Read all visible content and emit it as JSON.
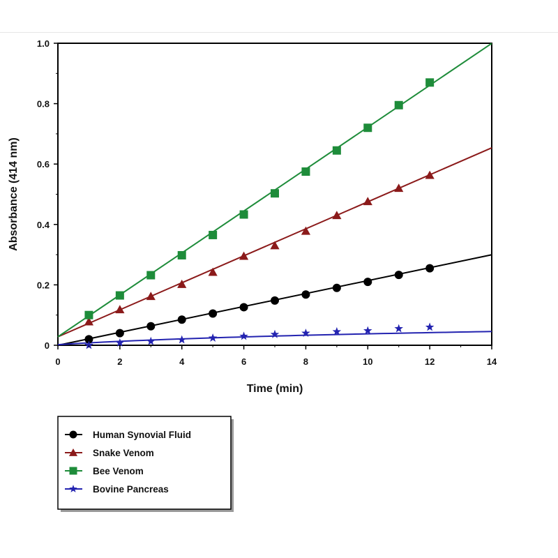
{
  "chart_data": {
    "type": "scatter",
    "xlabel": "Time (min)",
    "ylabel": "Absorbance (414 nm)",
    "xlim": [
      0,
      14
    ],
    "ylim": [
      0,
      1.0
    ],
    "x_ticks": [
      "0",
      "2",
      "4",
      "6",
      "8",
      "10",
      "12",
      "14"
    ],
    "y_ticks": [
      "0",
      "0.2",
      "0.4",
      "0.6",
      "0.8",
      "1.0"
    ],
    "grid": false,
    "legend_position": "below",
    "x": [
      1,
      2,
      3,
      4,
      5,
      6,
      7,
      8,
      9,
      10,
      11,
      12
    ],
    "series": [
      {
        "name": "Human Synovial Fluid",
        "marker": "circle",
        "color": "#000000",
        "values": [
          0.02,
          0.04,
          0.063,
          0.085,
          0.105,
          0.126,
          0.148,
          0.168,
          0.19,
          0.21,
          0.233,
          0.255
        ],
        "fit": {
          "intercept": 0.0,
          "slope": 0.0214
        }
      },
      {
        "name": "Snake Venom",
        "marker": "triangle",
        "color": "#8b1a1a",
        "values": [
          0.078,
          0.118,
          0.162,
          0.202,
          0.242,
          0.295,
          0.33,
          0.378,
          0.43,
          0.476,
          0.52,
          0.563
        ],
        "fit": {
          "intercept": 0.028,
          "slope": 0.0447
        }
      },
      {
        "name": "Bee Venom",
        "marker": "square",
        "color": "#1e8c3a",
        "values": [
          0.1,
          0.165,
          0.232,
          0.298,
          0.365,
          0.433,
          0.503,
          0.575,
          0.645,
          0.72,
          0.795,
          0.87
        ],
        "fit": {
          "intercept": 0.028,
          "slope": 0.0694
        }
      },
      {
        "name": "Bovine Pancreas",
        "marker": "star",
        "color": "#2323b0",
        "values": [
          0.0,
          0.008,
          0.013,
          0.018,
          0.024,
          0.03,
          0.036,
          0.04,
          0.045,
          0.048,
          0.055,
          0.06
        ],
        "fit": {
          "intercept": 0.0,
          "slope": 0.0057,
          "curve": "log",
          "a": 0.0326,
          "b": 0.2
        }
      }
    ]
  }
}
